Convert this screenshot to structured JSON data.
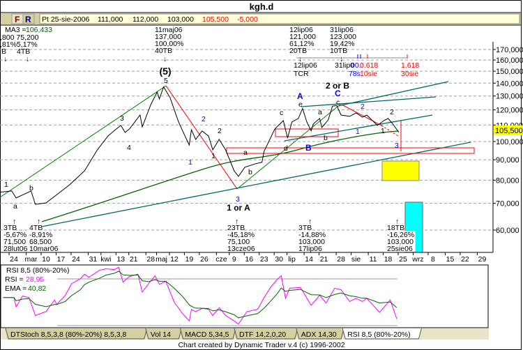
{
  "window": {
    "title": "kgh.d"
  },
  "toolbar": {
    "f_label": "F",
    "r_label": "R"
  },
  "quote": {
    "date": "Pt 25-sie-2006",
    "open": "111,000",
    "high": "112,000",
    "low": "103,000",
    "close": "105,500",
    "change": "-5,000"
  },
  "indicator": {
    "ma_label": "MA3 =",
    "ma_value": "106,433",
    "col_a": ",800 75,200",
    "col_b": ",81%5,17%",
    "tb_a": "B",
    "tb_b": "4TB"
  },
  "annotations": {
    "top": [
      {
        "date": "11maj06",
        "price": "137,000",
        "pct": "100,00%",
        "tb": "40TB"
      },
      {
        "date": "12lip06",
        "price": "121,000",
        "pct": "61,12%",
        "tb": "20TB"
      },
      {
        "date": "31lip06",
        "price": "123,000",
        "pct": "19,42%",
        "tb": "10TB"
      }
    ],
    "bottom": [
      {
        "tb": "3TB",
        "pct": "-5,67%",
        "price": "71,500",
        "date": "28lut06"
      },
      {
        "tb": "4TB",
        "pct": "-8,91%",
        "price": "68,500",
        "date": "10mar06"
      },
      {
        "tb": "23TB",
        "pct": "-45,18%",
        "price": "75,100",
        "date": "13cze06"
      },
      {
        "tb": "3TB",
        "pct": "-14,88%",
        "price": "103,000",
        "date": "17lip06"
      },
      {
        "tb": "18TB",
        "pct": "-16,26%",
        "price": "103,000",
        "date": "25sie06"
      }
    ],
    "tcr": {
      "date1": "12lip06",
      "tcr": "TCR",
      "date2": "31lip0",
      "blue1": "00.:",
      "blue2": "78s",
      "r1": "0.618",
      "r1date": "10sie",
      "r2": "1.618",
      "r2date": "30sie"
    },
    "waves": {
      "five": "(5)",
      "one_or_a": "1 or A",
      "two_or_b": "2 or B",
      "A": "A",
      "B": "B",
      "C": "C",
      "w1": "1",
      "wa": "a",
      "wb": "b",
      "w3": "3",
      "w4": "4",
      "w5": "5",
      "w2blue": "2",
      "w1blue": "1",
      "w2": "2",
      "w1b": "1",
      "wa2": "a",
      "wb2": "b",
      "w3blue": "3",
      "wc": "c",
      "we": "e",
      "wa3": "a",
      "wb3": "b",
      "wd": "d",
      "wc2": "c",
      "w2blue2": "2",
      "w1blue2": "1",
      "w1c": "1",
      "w2c": "2",
      "w3blue2": "3"
    }
  },
  "rsi_panel": {
    "title": "RSI 8,5 (80%-20%)",
    "rsi_label": "RSI =",
    "rsi_value": "28,95",
    "ema_label": "EMA =",
    "ema_value": "40,82"
  },
  "tabs": [
    {
      "label": "DTStoch 8,5,3,8 (80%-20%) 8,5,3,8",
      "active": false
    },
    {
      "label": "Vol 14",
      "active": false
    },
    {
      "label": "MACD 5,34,5",
      "active": false
    },
    {
      "label": "DTF 14,2,0,20",
      "active": false
    },
    {
      "label": "ADX 14,30",
      "active": false
    },
    {
      "label": "RSI 8,5 (80%-20%)",
      "active": true
    }
  ],
  "footer": "Chart created by Dynamic Trader v.4  (c) 1996-2002",
  "colors": {
    "price": "#000000",
    "rsi": "#ff00ff",
    "ema": "#006400",
    "close_hl": "#ffff00",
    "up": "#ff0000"
  },
  "chart_data": {
    "type": "line",
    "title": "kgh.d",
    "x_unit": "days since 2006-02-17",
    "y_scale": "log",
    "ylim": [
      55000,
      175000
    ],
    "y_ticks": [
      {
        "v": 170000,
        "label": "170,000"
      },
      {
        "v": 160000,
        "label": "160,000"
      },
      {
        "v": 150000,
        "label": "150,000"
      },
      {
        "v": 140000,
        "label": "140,000"
      },
      {
        "v": 130000,
        "label": "130,000"
      },
      {
        "v": 120000,
        "label": "120,000"
      },
      {
        "v": 110000,
        "label": "110,000"
      },
      {
        "v": 100000,
        "label": "100,000"
      },
      {
        "v": 90000,
        "label": "90,000"
      },
      {
        "v": 80000,
        "label": "80,000"
      },
      {
        "v": 70000,
        "label": "70,000"
      },
      {
        "v": 60000,
        "label": "60,000"
      }
    ],
    "last_price": {
      "v": 105500,
      "label": "105,500"
    },
    "x_ticks": [
      {
        "d": 7,
        "label": "24"
      },
      {
        "d": 15,
        "label": "mar"
      },
      {
        "d": 22,
        "label": "10"
      },
      {
        "d": 29,
        "label": "17"
      },
      {
        "d": 36,
        "label": "24"
      },
      {
        "d": 44,
        "label": "31"
      },
      {
        "d": 50,
        "label": "kwi"
      },
      {
        "d": 57,
        "label": "13"
      },
      {
        "d": 63,
        "label": "21"
      },
      {
        "d": 71,
        "label": "28"
      },
      {
        "d": 76,
        "label": "maj"
      },
      {
        "d": 82,
        "label": "12"
      },
      {
        "d": 89,
        "label": "19"
      },
      {
        "d": 96,
        "label": "26"
      },
      {
        "d": 104,
        "label": "cze"
      },
      {
        "d": 110,
        "label": "9"
      },
      {
        "d": 117,
        "label": "16"
      },
      {
        "d": 124,
        "label": "23"
      },
      {
        "d": 131,
        "label": "30"
      },
      {
        "d": 137,
        "label": "lip"
      },
      {
        "d": 145,
        "label": "14"
      },
      {
        "d": 152,
        "label": "21"
      },
      {
        "d": 160,
        "label": "28"
      },
      {
        "d": 167,
        "label": "sie"
      },
      {
        "d": 175,
        "label": "11"
      },
      {
        "d": 182,
        "label": "18"
      },
      {
        "d": 189,
        "label": "25"
      },
      {
        "d": 196,
        "label": "wrz"
      },
      {
        "d": 203,
        "label": "8"
      },
      {
        "d": 211,
        "label": "15"
      },
      {
        "d": 218,
        "label": "22"
      },
      {
        "d": 226,
        "label": "29"
      }
    ],
    "price": [
      [
        0,
        74600
      ],
      [
        6,
        75200
      ],
      [
        8,
        72200
      ],
      [
        15,
        75200
      ],
      [
        17,
        69600
      ],
      [
        22,
        70200
      ],
      [
        33,
        77900
      ],
      [
        40,
        84400
      ],
      [
        46,
        95300
      ],
      [
        51,
        103200
      ],
      [
        54,
        106600
      ],
      [
        57,
        109700
      ],
      [
        59,
        105400
      ],
      [
        61,
        107500
      ],
      [
        66,
        116500
      ],
      [
        67,
        108800
      ],
      [
        71,
        123700
      ],
      [
        74,
        133000
      ],
      [
        75,
        127800
      ],
      [
        77,
        137000
      ],
      [
        80,
        128900
      ],
      [
        84,
        111900
      ],
      [
        87,
        103200
      ],
      [
        89,
        98000
      ],
      [
        90,
        107100
      ],
      [
        92,
        101200
      ],
      [
        95,
        106300
      ],
      [
        98,
        103200
      ],
      [
        100,
        95300
      ],
      [
        103,
        101200
      ],
      [
        106,
        95300
      ],
      [
        110,
        84400
      ],
      [
        112,
        81800
      ],
      [
        115,
        86200
      ],
      [
        120,
        88000
      ],
      [
        123,
        88700
      ],
      [
        124,
        94500
      ],
      [
        129,
        107500
      ],
      [
        133,
        112800
      ],
      [
        135,
        102000
      ],
      [
        137,
        111900
      ],
      [
        140,
        114200
      ],
      [
        142,
        121000
      ],
      [
        144,
        111900
      ],
      [
        146,
        106300
      ],
      [
        147,
        110600
      ],
      [
        150,
        114200
      ],
      [
        151,
        108400
      ],
      [
        154,
        113300
      ],
      [
        156,
        122700
      ],
      [
        158,
        123000
      ],
      [
        160,
        116500
      ],
      [
        164,
        115600
      ],
      [
        167,
        117900
      ],
      [
        170,
        115100
      ],
      [
        172,
        116500
      ],
      [
        177,
        109700
      ],
      [
        180,
        112800
      ],
      [
        182,
        114200
      ],
      [
        184,
        111000
      ],
      [
        187,
        105500
      ]
    ],
    "rsi": {
      "levels": [
        80,
        20
      ],
      "series": [
        [
          2,
          56
        ],
        [
          7,
          56
        ],
        [
          8,
          44
        ],
        [
          11,
          58
        ],
        [
          14,
          56
        ],
        [
          17,
          33
        ],
        [
          22,
          38
        ],
        [
          26,
          53
        ],
        [
          27,
          47
        ],
        [
          31,
          59
        ],
        [
          34,
          74
        ],
        [
          38,
          80
        ],
        [
          40,
          86
        ],
        [
          42,
          82
        ],
        [
          47,
          91
        ],
        [
          50,
          93
        ],
        [
          54,
          92
        ],
        [
          56,
          95
        ],
        [
          58,
          76
        ],
        [
          61,
          83
        ],
        [
          65,
          86
        ],
        [
          67,
          63
        ],
        [
          70,
          74
        ],
        [
          73,
          84
        ],
        [
          75,
          73
        ],
        [
          78,
          77
        ],
        [
          82,
          50
        ],
        [
          86,
          35
        ],
        [
          89,
          26
        ],
        [
          90,
          41
        ],
        [
          92,
          38
        ],
        [
          95,
          42
        ],
        [
          98,
          41
        ],
        [
          100,
          33
        ],
        [
          103,
          43
        ],
        [
          106,
          33
        ],
        [
          110,
          26
        ],
        [
          112,
          22
        ],
        [
          116,
          38
        ],
        [
          121,
          41
        ],
        [
          124,
          56
        ],
        [
          127,
          69
        ],
        [
          130,
          79
        ],
        [
          132,
          84
        ],
        [
          134,
          55
        ],
        [
          136,
          68
        ],
        [
          141,
          69
        ],
        [
          146,
          46
        ],
        [
          150,
          59
        ],
        [
          153,
          49
        ],
        [
          157,
          68
        ],
        [
          160,
          66
        ],
        [
          164,
          51
        ],
        [
          167,
          55
        ],
        [
          170,
          51
        ],
        [
          172,
          55
        ],
        [
          178,
          37
        ],
        [
          183,
          53
        ],
        [
          186,
          29
        ]
      ]
    }
  }
}
